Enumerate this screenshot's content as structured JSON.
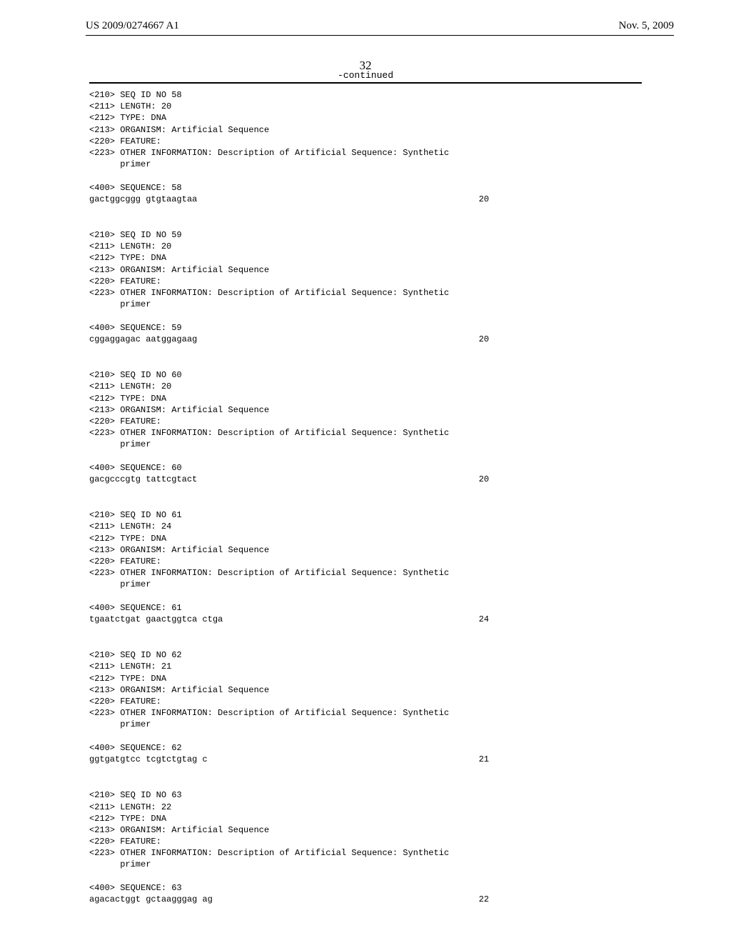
{
  "header": {
    "publication_number": "US 2009/0274667 A1",
    "publication_date": "Nov. 5, 2009"
  },
  "page_number": "32",
  "continued_label": "-continued",
  "sequences": [
    {
      "id": "58",
      "length_attr": "20",
      "type": "DNA",
      "organism": "Artificial Sequence",
      "feature": "",
      "other_info": "Description of Artificial Sequence: Synthetic",
      "other_info_line2": "primer",
      "sequence_label": "58",
      "sequence": "gactggcggg gtgtaagtaa",
      "seq_length": "20"
    },
    {
      "id": "59",
      "length_attr": "20",
      "type": "DNA",
      "organism": "Artificial Sequence",
      "feature": "",
      "other_info": "Description of Artificial Sequence: Synthetic",
      "other_info_line2": "primer",
      "sequence_label": "59",
      "sequence": "cggaggagac aatggagaag",
      "seq_length": "20"
    },
    {
      "id": "60",
      "length_attr": "20",
      "type": "DNA",
      "organism": "Artificial Sequence",
      "feature": "",
      "other_info": "Description of Artificial Sequence: Synthetic",
      "other_info_line2": "primer",
      "sequence_label": "60",
      "sequence": "gacgcccgtg tattcgtact",
      "seq_length": "20"
    },
    {
      "id": "61",
      "length_attr": "24",
      "type": "DNA",
      "organism": "Artificial Sequence",
      "feature": "",
      "other_info": "Description of Artificial Sequence: Synthetic",
      "other_info_line2": "primer",
      "sequence_label": "61",
      "sequence": "tgaatctgat gaactggtca ctga",
      "seq_length": "24"
    },
    {
      "id": "62",
      "length_attr": "21",
      "type": "DNA",
      "organism": "Artificial Sequence",
      "feature": "",
      "other_info": "Description of Artificial Sequence: Synthetic",
      "other_info_line2": "primer",
      "sequence_label": "62",
      "sequence": "ggtgatgtcc tcgtctgtag c",
      "seq_length": "21"
    },
    {
      "id": "63",
      "length_attr": "22",
      "type": "DNA",
      "organism": "Artificial Sequence",
      "feature": "",
      "other_info": "Description of Artificial Sequence: Synthetic",
      "other_info_line2": "primer",
      "sequence_label": "63",
      "sequence": "agacactggt gctaagggag ag",
      "seq_length": "22"
    }
  ],
  "labels": {
    "seq_id": "<210> SEQ ID NO ",
    "length": "<211> LENGTH: ",
    "type": "<212> TYPE: ",
    "organism": "<213> ORGANISM: ",
    "feature": "<220> FEATURE:",
    "other": "<223> OTHER INFORMATION: ",
    "indent": "      ",
    "sequence": "<400> SEQUENCE: "
  }
}
